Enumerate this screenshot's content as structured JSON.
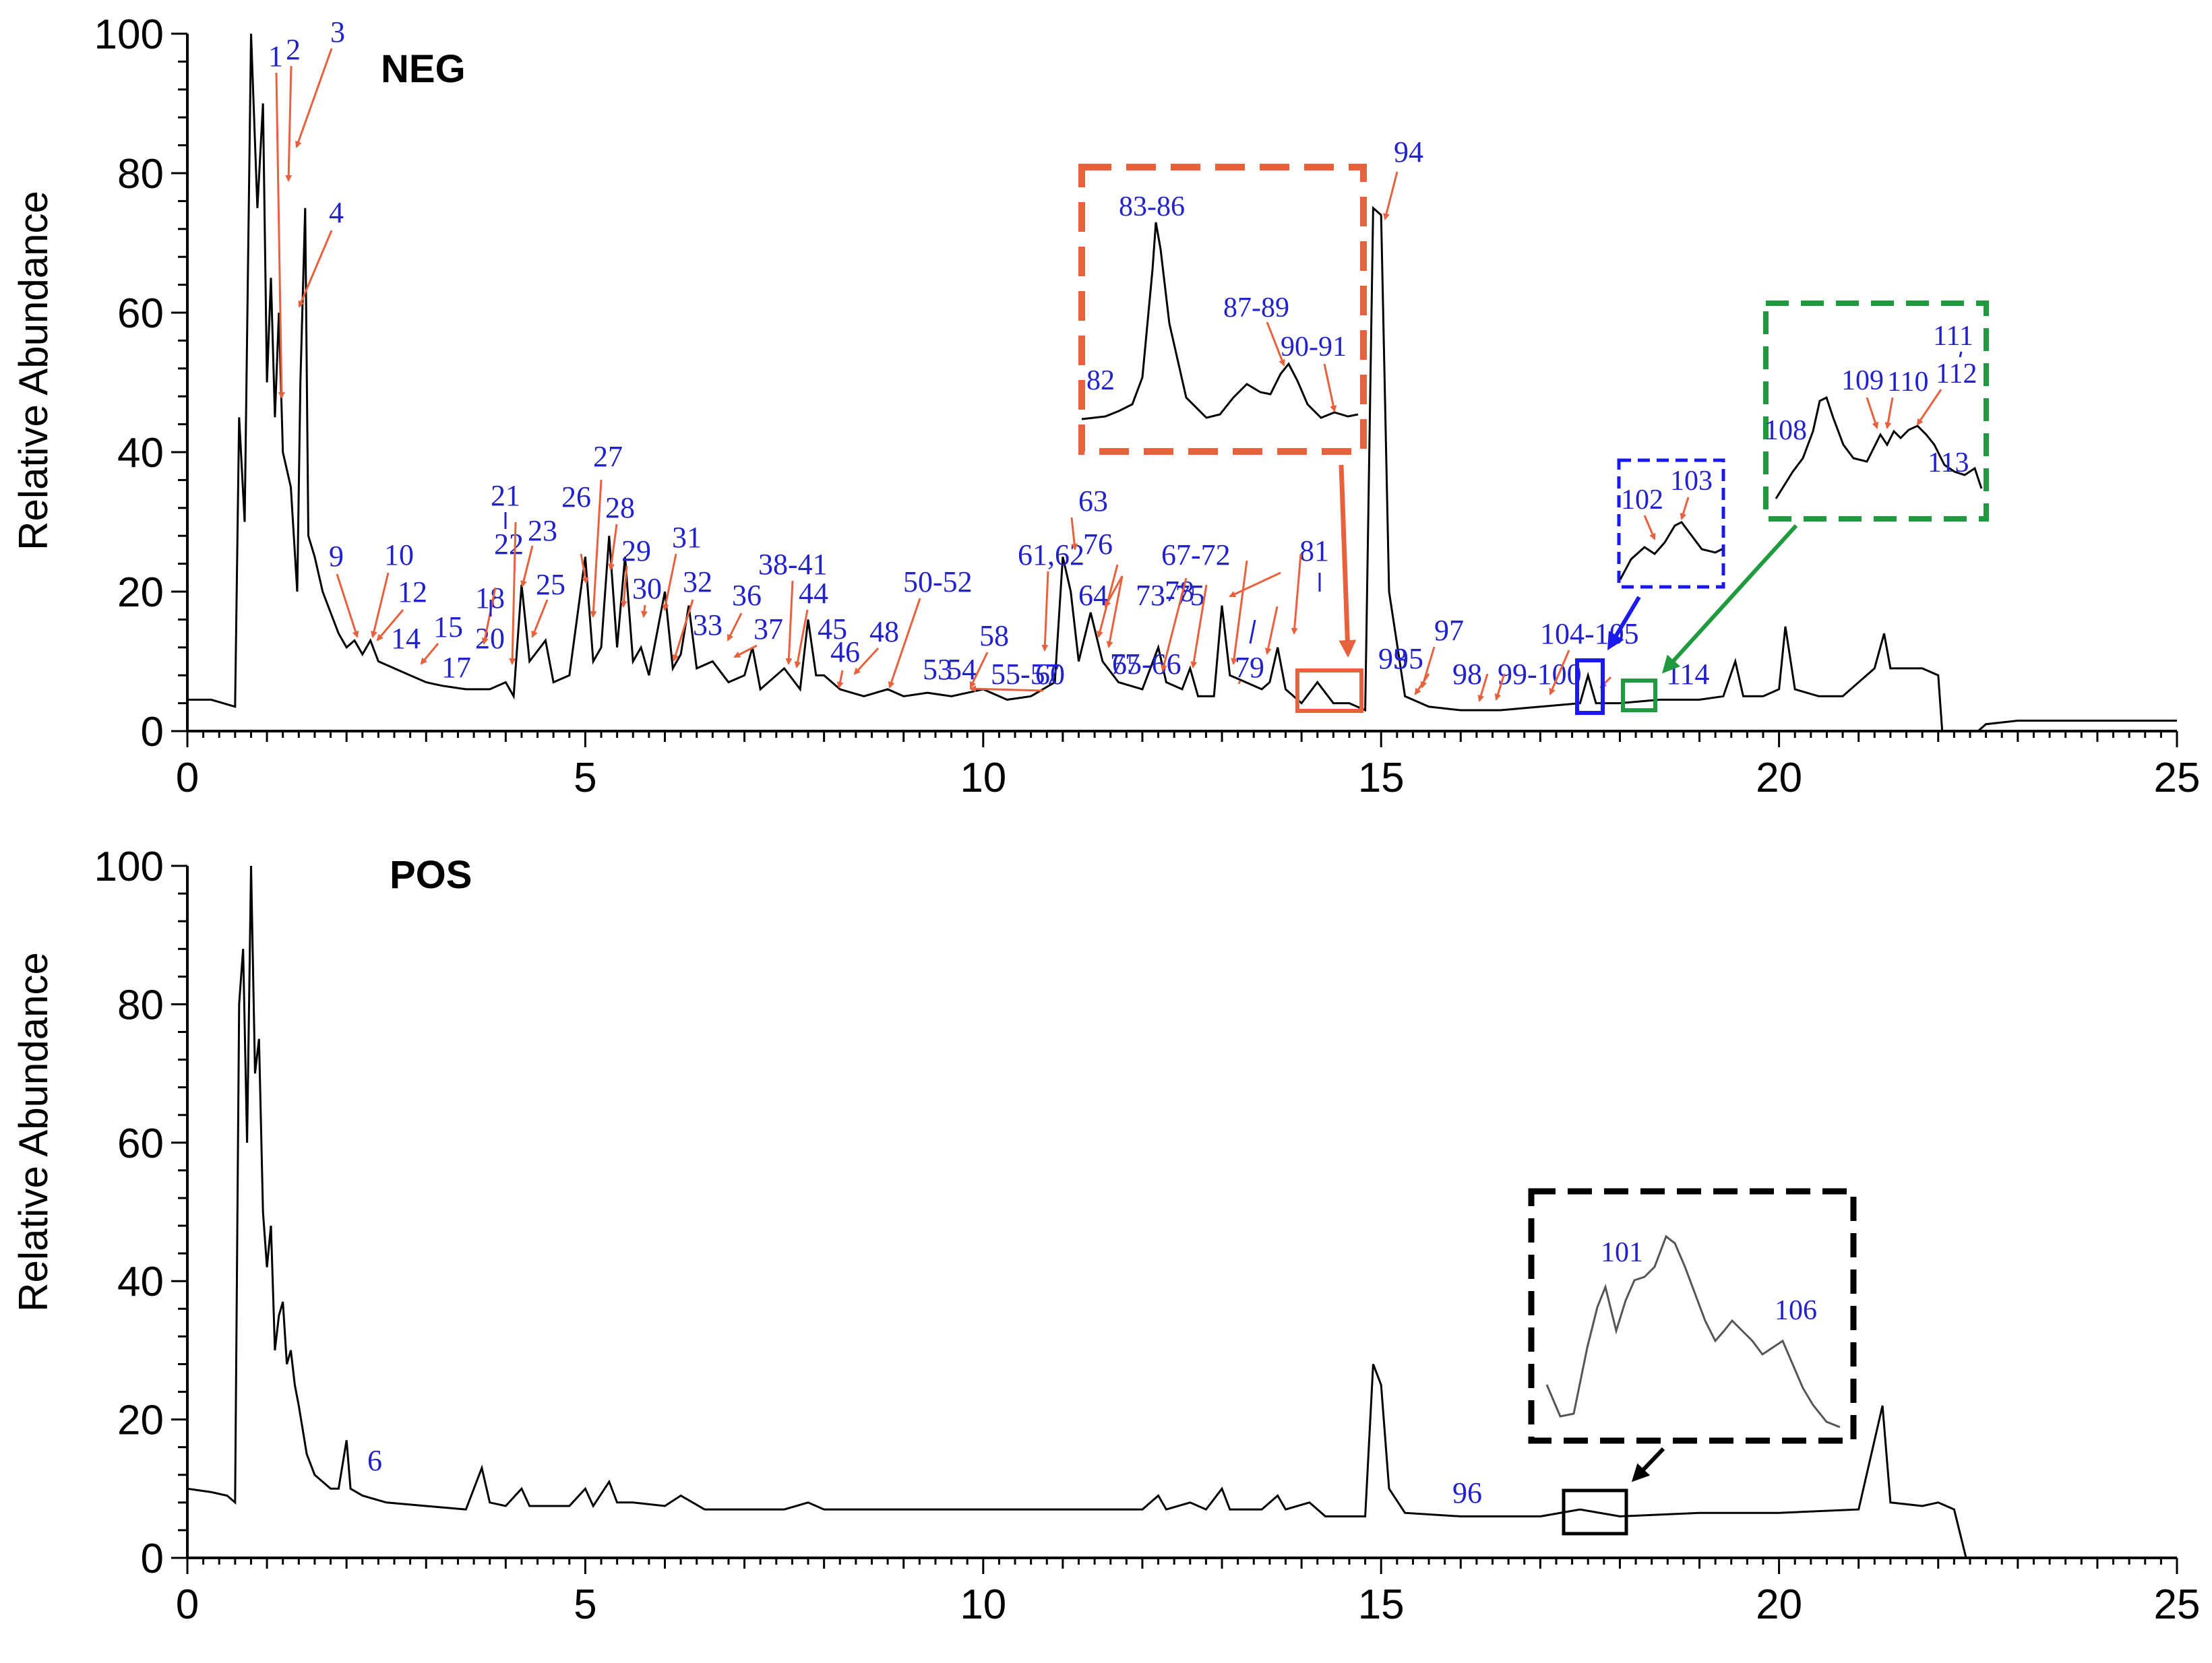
{
  "chart_data": [
    {
      "type": "line",
      "mode_label": "NEG",
      "ylabel": "Relative Abundance",
      "xlabel": "",
      "xlim": [
        0,
        25
      ],
      "ylim": [
        0,
        100
      ],
      "x_ticks": [
        "0",
        "5",
        "10",
        "15",
        "20",
        "25"
      ],
      "y_ticks": [
        "0",
        "20",
        "40",
        "60",
        "80",
        "100"
      ],
      "trace_points": [
        [
          0,
          4.5
        ],
        [
          0.3,
          4.5
        ],
        [
          0.6,
          3.5
        ],
        [
          0.65,
          45
        ],
        [
          0.72,
          30
        ],
        [
          0.8,
          100
        ],
        [
          0.88,
          75
        ],
        [
          0.95,
          90
        ],
        [
          1.0,
          50
        ],
        [
          1.05,
          65
        ],
        [
          1.1,
          45
        ],
        [
          1.15,
          60
        ],
        [
          1.2,
          40
        ],
        [
          1.3,
          35
        ],
        [
          1.38,
          20
        ],
        [
          1.42,
          50
        ],
        [
          1.48,
          75
        ],
        [
          1.52,
          28
        ],
        [
          1.6,
          25
        ],
        [
          1.7,
          20
        ],
        [
          1.8,
          17
        ],
        [
          1.9,
          14
        ],
        [
          2.0,
          12
        ],
        [
          2.1,
          13
        ],
        [
          2.2,
          11
        ],
        [
          2.3,
          13
        ],
        [
          2.4,
          10
        ],
        [
          2.6,
          9
        ],
        [
          2.8,
          8
        ],
        [
          3.0,
          7
        ],
        [
          3.2,
          6.5
        ],
        [
          3.5,
          6
        ],
        [
          3.8,
          6
        ],
        [
          4.0,
          7
        ],
        [
          4.1,
          5
        ],
        [
          4.2,
          21
        ],
        [
          4.3,
          10
        ],
        [
          4.5,
          13
        ],
        [
          4.6,
          7
        ],
        [
          4.8,
          8
        ],
        [
          5.0,
          25
        ],
        [
          5.1,
          10
        ],
        [
          5.2,
          12
        ],
        [
          5.3,
          28
        ],
        [
          5.4,
          12
        ],
        [
          5.5,
          25
        ],
        [
          5.6,
          10
        ],
        [
          5.7,
          12
        ],
        [
          5.8,
          8
        ],
        [
          6.0,
          20
        ],
        [
          6.1,
          9
        ],
        [
          6.2,
          11
        ],
        [
          6.3,
          18
        ],
        [
          6.4,
          9
        ],
        [
          6.6,
          10
        ],
        [
          6.8,
          7
        ],
        [
          7.0,
          8
        ],
        [
          7.1,
          12
        ],
        [
          7.2,
          6
        ],
        [
          7.5,
          9
        ],
        [
          7.7,
          6
        ],
        [
          7.8,
          16
        ],
        [
          7.9,
          8
        ],
        [
          8.0,
          8
        ],
        [
          8.2,
          6
        ],
        [
          8.5,
          5
        ],
        [
          8.8,
          6
        ],
        [
          9.0,
          5
        ],
        [
          9.3,
          5.5
        ],
        [
          9.6,
          5
        ],
        [
          10.0,
          6
        ],
        [
          10.3,
          4.5
        ],
        [
          10.6,
          5
        ],
        [
          10.9,
          7
        ],
        [
          11.0,
          25
        ],
        [
          11.1,
          20
        ],
        [
          11.2,
          10
        ],
        [
          11.35,
          17
        ],
        [
          11.5,
          10
        ],
        [
          11.7,
          7
        ],
        [
          12.0,
          6
        ],
        [
          12.2,
          12
        ],
        [
          12.3,
          7
        ],
        [
          12.5,
          6
        ],
        [
          12.6,
          9
        ],
        [
          12.7,
          5
        ],
        [
          12.9,
          5
        ],
        [
          13.0,
          18
        ],
        [
          13.1,
          8
        ],
        [
          13.3,
          7
        ],
        [
          13.5,
          6
        ],
        [
          13.6,
          7
        ],
        [
          13.7,
          12
        ],
        [
          13.8,
          6
        ],
        [
          14.0,
          4
        ],
        [
          14.2,
          7
        ],
        [
          14.4,
          4
        ],
        [
          14.6,
          4
        ],
        [
          14.8,
          3
        ],
        [
          14.9,
          75
        ],
        [
          15.0,
          74
        ],
        [
          15.1,
          20
        ],
        [
          15.3,
          5
        ],
        [
          15.6,
          3.5
        ],
        [
          16.0,
          3
        ],
        [
          16.5,
          3
        ],
        [
          17.0,
          3.5
        ],
        [
          17.5,
          4
        ],
        [
          17.6,
          8
        ],
        [
          17.7,
          4
        ],
        [
          18.0,
          4
        ],
        [
          18.5,
          4.5
        ],
        [
          19.0,
          4.5
        ],
        [
          19.3,
          5
        ],
        [
          19.45,
          10
        ],
        [
          19.55,
          5
        ],
        [
          19.8,
          5
        ],
        [
          20.0,
          6
        ],
        [
          20.08,
          15
        ],
        [
          20.2,
          6
        ],
        [
          20.5,
          5
        ],
        [
          20.8,
          5
        ],
        [
          21.0,
          7
        ],
        [
          21.2,
          9
        ],
        [
          21.32,
          14
        ],
        [
          21.4,
          9
        ],
        [
          21.6,
          9
        ],
        [
          21.8,
          9
        ],
        [
          22.0,
          8
        ],
        [
          22.05,
          0
        ],
        [
          22.5,
          0
        ],
        [
          22.6,
          1
        ],
        [
          23.0,
          1.5
        ],
        [
          23.5,
          1.5
        ],
        [
          24.0,
          1.5
        ],
        [
          24.5,
          1.5
        ],
        [
          25.0,
          1.5
        ]
      ],
      "peak_annotations": [
        "1",
        "2",
        "3",
        "4",
        "9",
        "10",
        "12",
        "14",
        "15",
        "17",
        "18",
        "20",
        "21",
        "22",
        "23",
        "25",
        "26",
        "27",
        "28",
        "29",
        "30",
        "31",
        "32",
        "33",
        "36",
        "37",
        "38-41",
        "44",
        "45",
        "46",
        "48",
        "50-52",
        "53",
        "54",
        "55-57",
        "58",
        "60",
        "61,62",
        "63",
        "64",
        "65-66",
        "67-72",
        "73-75",
        "76",
        "77",
        "78",
        "79",
        "81",
        "93",
        "94",
        "95",
        "97",
        "98",
        "99-100",
        "104-105",
        "114"
      ],
      "insets": [
        {
          "labels": [
            "83-86",
            "87-89",
            "90-91",
            "82"
          ]
        },
        {
          "labels": [
            "102",
            "103"
          ]
        },
        {
          "labels": [
            "108",
            "109",
            "110",
            "111",
            "112",
            "113"
          ]
        }
      ]
    },
    {
      "type": "line",
      "mode_label": "POS",
      "ylabel": "Relative Abundance",
      "xlabel": "",
      "xlim": [
        0,
        25
      ],
      "ylim": [
        0,
        100
      ],
      "x_ticks": [
        "0",
        "5",
        "10",
        "15",
        "20",
        "25"
      ],
      "y_ticks": [
        "0",
        "20",
        "40",
        "60",
        "80",
        "100"
      ],
      "trace_points": [
        [
          0,
          10
        ],
        [
          0.3,
          9.5
        ],
        [
          0.5,
          9
        ],
        [
          0.6,
          8
        ],
        [
          0.65,
          80
        ],
        [
          0.7,
          88
        ],
        [
          0.75,
          60
        ],
        [
          0.8,
          100
        ],
        [
          0.85,
          70
        ],
        [
          0.9,
          75
        ],
        [
          0.95,
          50
        ],
        [
          1.0,
          42
        ],
        [
          1.05,
          48
        ],
        [
          1.1,
          30
        ],
        [
          1.15,
          35
        ],
        [
          1.2,
          37
        ],
        [
          1.25,
          28
        ],
        [
          1.3,
          30
        ],
        [
          1.35,
          25
        ],
        [
          1.4,
          22
        ],
        [
          1.5,
          15
        ],
        [
          1.6,
          12
        ],
        [
          1.7,
          11
        ],
        [
          1.8,
          10
        ],
        [
          1.9,
          10
        ],
        [
          2.0,
          17
        ],
        [
          2.05,
          10
        ],
        [
          2.2,
          9
        ],
        [
          2.5,
          8
        ],
        [
          3.0,
          7.5
        ],
        [
          3.5,
          7
        ],
        [
          3.7,
          13
        ],
        [
          3.8,
          8
        ],
        [
          4.0,
          7.5
        ],
        [
          4.2,
          10
        ],
        [
          4.3,
          7.5
        ],
        [
          4.8,
          7.5
        ],
        [
          5.0,
          10
        ],
        [
          5.1,
          7.5
        ],
        [
          5.3,
          11
        ],
        [
          5.4,
          8
        ],
        [
          5.6,
          8
        ],
        [
          6.0,
          7.5
        ],
        [
          6.2,
          9
        ],
        [
          6.5,
          7
        ],
        [
          7.0,
          7
        ],
        [
          7.5,
          7
        ],
        [
          7.8,
          8
        ],
        [
          8.0,
          7
        ],
        [
          9.0,
          7
        ],
        [
          10.0,
          7
        ],
        [
          11.0,
          7
        ],
        [
          12.0,
          7
        ],
        [
          12.2,
          9
        ],
        [
          12.3,
          7
        ],
        [
          12.6,
          8
        ],
        [
          12.8,
          7
        ],
        [
          13.0,
          10
        ],
        [
          13.1,
          7
        ],
        [
          13.5,
          7
        ],
        [
          13.7,
          9
        ],
        [
          13.8,
          7
        ],
        [
          14.1,
          8
        ],
        [
          14.3,
          6
        ],
        [
          14.8,
          6
        ],
        [
          14.9,
          28
        ],
        [
          15.0,
          25
        ],
        [
          15.1,
          10
        ],
        [
          15.3,
          6.5
        ],
        [
          16.0,
          6
        ],
        [
          17.0,
          6
        ],
        [
          17.5,
          7
        ],
        [
          18.0,
          6
        ],
        [
          19.0,
          6.5
        ],
        [
          20.0,
          6.5
        ],
        [
          21.0,
          7
        ],
        [
          21.3,
          22
        ],
        [
          21.4,
          8
        ],
        [
          21.8,
          7.5
        ],
        [
          22.0,
          8
        ],
        [
          22.2,
          7
        ],
        [
          22.35,
          0
        ],
        [
          23.0,
          0
        ],
        [
          24.0,
          0
        ],
        [
          25.0,
          0
        ]
      ],
      "peak_annotations": [
        "6",
        "96"
      ],
      "insets": [
        {
          "labels": [
            "101",
            "106"
          ]
        }
      ]
    }
  ],
  "colors": {
    "label_blue": "#2222cc",
    "arrow_orange": "#e8603c",
    "box_orange": "#e8603c",
    "box_blue": "#1a1aee",
    "box_green": "#1f9a3f",
    "box_black": "#000000",
    "trace": "#000000"
  }
}
